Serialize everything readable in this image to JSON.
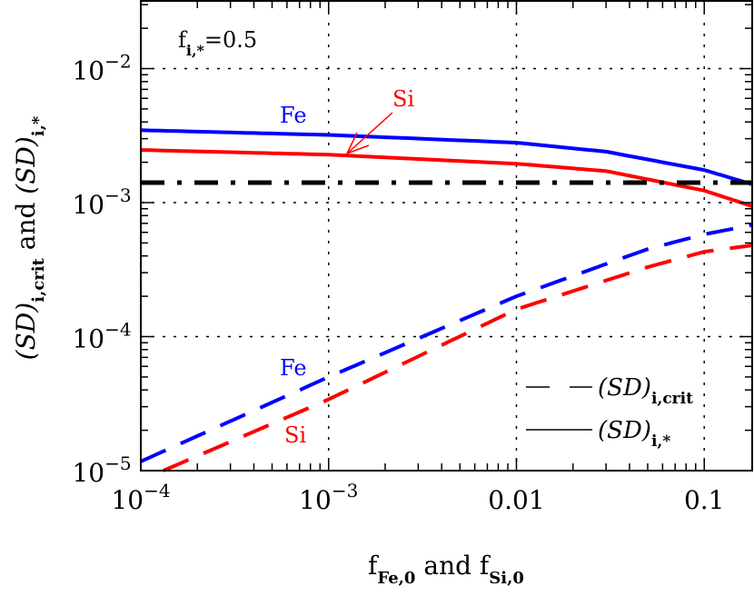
{
  "chart_data": {
    "type": "line",
    "xscale": "log",
    "yscale": "log",
    "xlim": [
      0.0001,
      0.18
    ],
    "ylim": [
      1e-05,
      0.032
    ],
    "grid": true,
    "xlabel": {
      "main1": "f",
      "sub1": "Fe,0",
      "mid": " and ",
      "main2": "f",
      "sub2": "Si,0"
    },
    "ylabel": {
      "a": "(SD)",
      "a_sub": "i,crit",
      "mid": " and ",
      "b": "(SD)",
      "b_sub": "i,*"
    },
    "x_ticks": [
      {
        "value": 0.0001,
        "base": "10",
        "exp": "−4"
      },
      {
        "value": 0.001,
        "base": "10",
        "exp": "−3"
      },
      {
        "value": 0.01,
        "label": "0.01"
      },
      {
        "value": 0.1,
        "label": "0.1"
      }
    ],
    "y_ticks": [
      {
        "value": 1e-05,
        "base": "10",
        "exp": "−5"
      },
      {
        "value": 0.0001,
        "base": "10",
        "exp": "−4"
      },
      {
        "value": 0.001,
        "base": "10",
        "exp": "−3"
      },
      {
        "value": 0.01,
        "base": "10",
        "exp": "−2"
      }
    ],
    "annotation": {
      "main": "f",
      "sub": "i,*",
      "rest": "=0.5"
    },
    "series": [
      {
        "element": "Fe",
        "kind": "(SD)i,*",
        "style": "solid",
        "color": "#0000ff",
        "x": [
          0.0001,
          0.001,
          0.01,
          0.03,
          0.1,
          0.18
        ],
        "y": [
          0.00347,
          0.0032,
          0.0028,
          0.0024,
          0.00175,
          0.00137
        ]
      },
      {
        "element": "Si",
        "kind": "(SD)i,*",
        "style": "solid",
        "color": "#ff0000",
        "x": [
          0.0001,
          0.001,
          0.01,
          0.03,
          0.1,
          0.18
        ],
        "y": [
          0.00247,
          0.00228,
          0.00195,
          0.00172,
          0.00123,
          0.00094
        ]
      },
      {
        "element": "Fe",
        "kind": "(SD)i,crit",
        "style": "dashed",
        "color": "#0000ff",
        "x": [
          0.0001,
          0.001,
          0.01,
          0.05,
          0.1,
          0.18
        ],
        "y": [
          1.17e-05,
          5e-05,
          0.0002,
          0.00045,
          0.00058,
          0.00068
        ]
      },
      {
        "element": "Si",
        "kind": "(SD)i,crit",
        "style": "dashed",
        "color": "#ff0000",
        "x": [
          0.000132,
          0.001,
          0.01,
          0.05,
          0.1,
          0.18
        ],
        "y": [
          1e-05,
          3.4e-05,
          0.00016,
          0.00033,
          0.00043,
          0.00048
        ]
      },
      {
        "element": "",
        "kind": "threshold",
        "style": "dash-dot",
        "color": "#000000",
        "x": [
          0.0001,
          0.18
        ],
        "y": [
          0.00141,
          0.00141
        ]
      }
    ],
    "labels": [
      {
        "text": "Fe",
        "color": "#0000ff",
        "near": "Fe solid"
      },
      {
        "text": "Si",
        "color": "#ff0000",
        "near": "Si solid (arrow)"
      },
      {
        "text": "Fe",
        "color": "#0000ff",
        "near": "Fe dashed"
      },
      {
        "text": "Si",
        "color": "#ff0000",
        "near": "Si dashed"
      }
    ],
    "legend": {
      "placement": "bottom-right",
      "entries": [
        {
          "style": "dashed",
          "label": "(SD)",
          "sub": "i,crit"
        },
        {
          "style": "solid",
          "label": "(SD)",
          "sub": "i,*"
        }
      ]
    }
  }
}
